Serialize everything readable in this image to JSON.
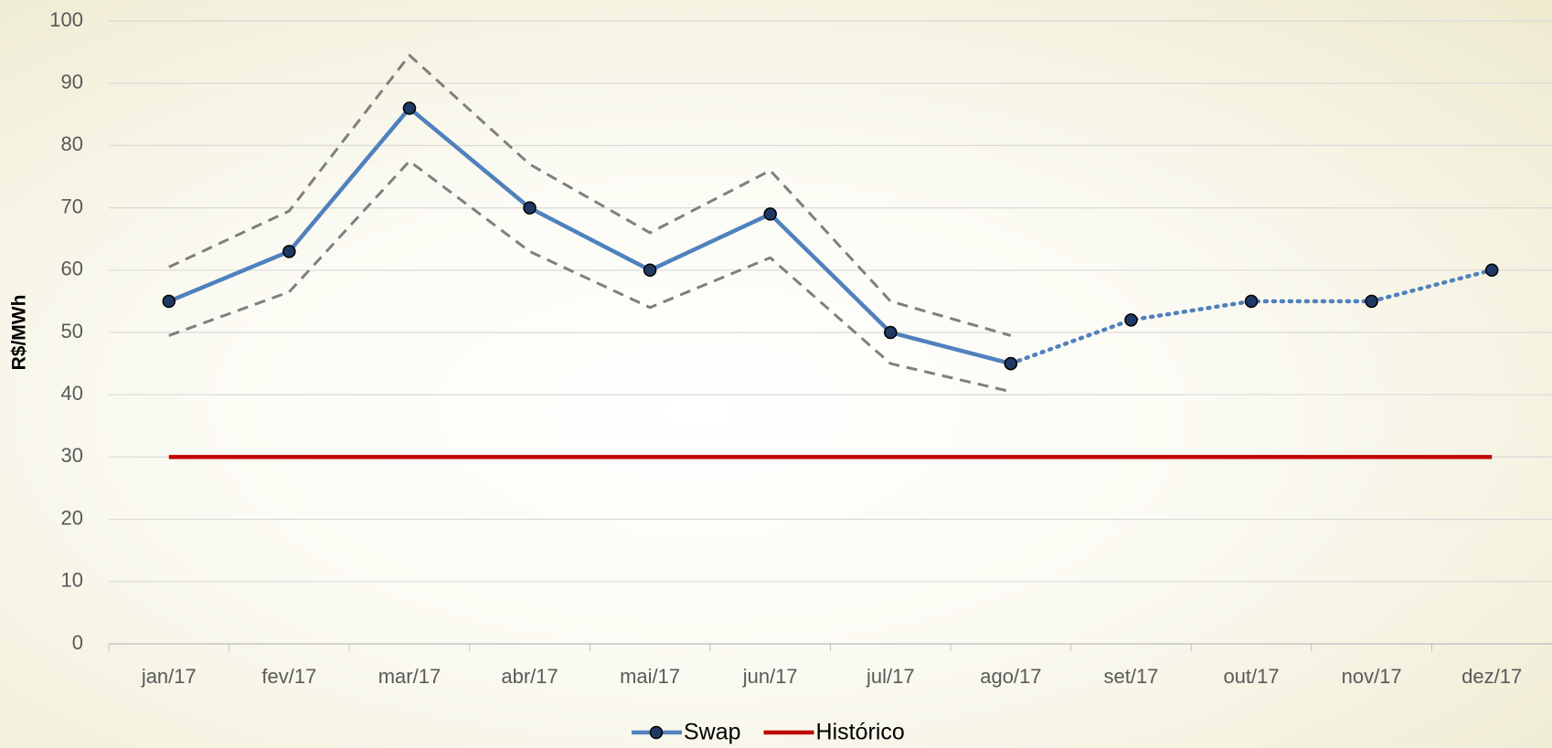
{
  "chart_data": {
    "type": "line",
    "y_label": "R$/MWh",
    "categories": [
      "jan/17",
      "fev/17",
      "mar/17",
      "abr/17",
      "mai/17",
      "jun/17",
      "jul/17",
      "ago/17",
      "set/17",
      "out/17",
      "nov/17",
      "dez/17"
    ],
    "series": [
      {
        "name": "Swap",
        "color": "#4f81bd",
        "marker": true,
        "line_style": "solid",
        "values": [
          55,
          63,
          86,
          70,
          60,
          69,
          50,
          45,
          null,
          null,
          null,
          null
        ]
      },
      {
        "color": "#4f81bd",
        "marker": true,
        "line_style": "dotted",
        "values": [
          null,
          null,
          null,
          null,
          null,
          null,
          null,
          45,
          52,
          55,
          55,
          60
        ]
      },
      {
        "color": "#7f7f7f",
        "marker": false,
        "line_style": "dashed",
        "values": [
          60.5,
          69.5,
          94.5,
          77,
          66,
          76,
          55,
          49.5,
          null,
          null,
          null,
          null
        ]
      },
      {
        "color": "#7f7f7f",
        "marker": false,
        "line_style": "dashed",
        "values": [
          49.5,
          56.5,
          77.5,
          63,
          54,
          62,
          45,
          40.5,
          null,
          null,
          null,
          null
        ]
      },
      {
        "name": "Histórico",
        "color": "#c00000",
        "marker": false,
        "line_style": "solid",
        "values": [
          30,
          30,
          30,
          30,
          30,
          30,
          30,
          30,
          30,
          30,
          30,
          30
        ]
      }
    ],
    "ylim": [
      0,
      100
    ],
    "yticks": [
      0,
      10,
      20,
      30,
      40,
      50,
      60,
      70,
      80,
      90,
      100
    ],
    "grid": true,
    "legend": "bottom"
  }
}
